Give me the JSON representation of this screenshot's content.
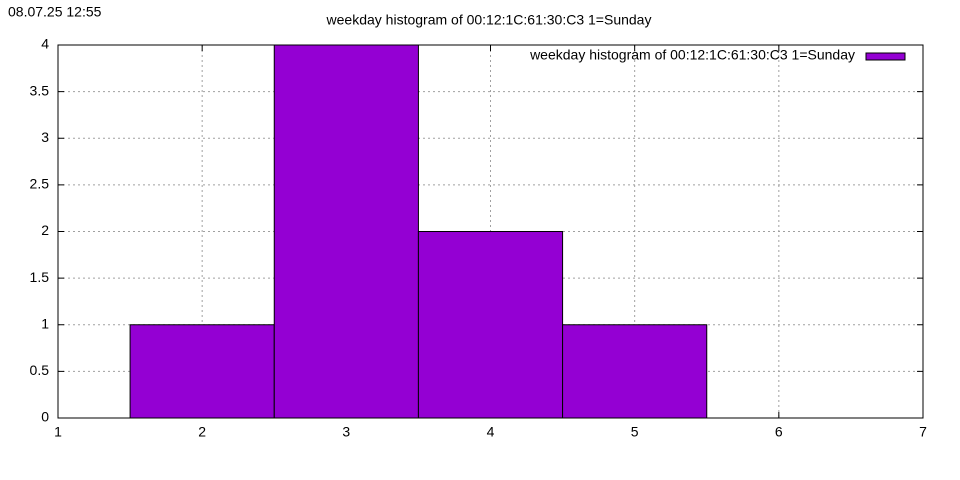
{
  "chart_data": {
    "type": "histogram",
    "title": "weekday histogram of 00:12:1C:61:30:C3 1=Sunday",
    "timestamp": "08.07.25 12:55",
    "bins": [
      1.5,
      2.5,
      3.5,
      4.5,
      5.5
    ],
    "series": [
      {
        "name": "weekday histogram of 00:12:1C:61:30:C3 1=Sunday",
        "color": "#9400d3",
        "values": [
          1,
          4,
          2,
          1
        ]
      }
    ],
    "xlim": [
      1,
      7
    ],
    "xticks": [
      1,
      2,
      3,
      4,
      5,
      6,
      7
    ],
    "ylim": [
      0,
      4
    ],
    "yticks": [
      0,
      0.5,
      1,
      1.5,
      2,
      2.5,
      3,
      3.5,
      4
    ],
    "grid": true,
    "legend": "top-right"
  }
}
